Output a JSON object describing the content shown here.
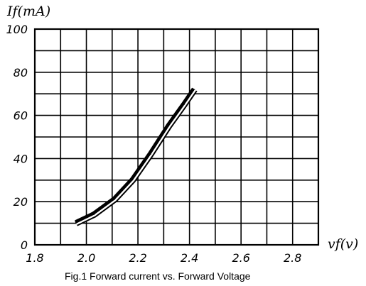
{
  "chart_data": {
    "type": "line",
    "caption": "Fig.1 Forward current vs. Forward Voltage",
    "xlabel": "vf(v)",
    "ylabel": "If(mA)",
    "xlim": [
      1.8,
      2.9
    ],
    "ylim": [
      0,
      100
    ],
    "x_ticks": [
      "1.8",
      "2.0",
      "2.2",
      "2.4",
      "2.6",
      "2.8"
    ],
    "y_ticks": [
      "0",
      "20",
      "40",
      "60",
      "80",
      "100"
    ],
    "grid": true,
    "series": [
      {
        "x": [
          1.96,
          2.03,
          2.11,
          2.18,
          2.25,
          2.32,
          2.38,
          2.42
        ],
        "y": [
          10,
          14,
          21,
          30,
          42,
          55,
          65,
          72
        ]
      }
    ]
  }
}
